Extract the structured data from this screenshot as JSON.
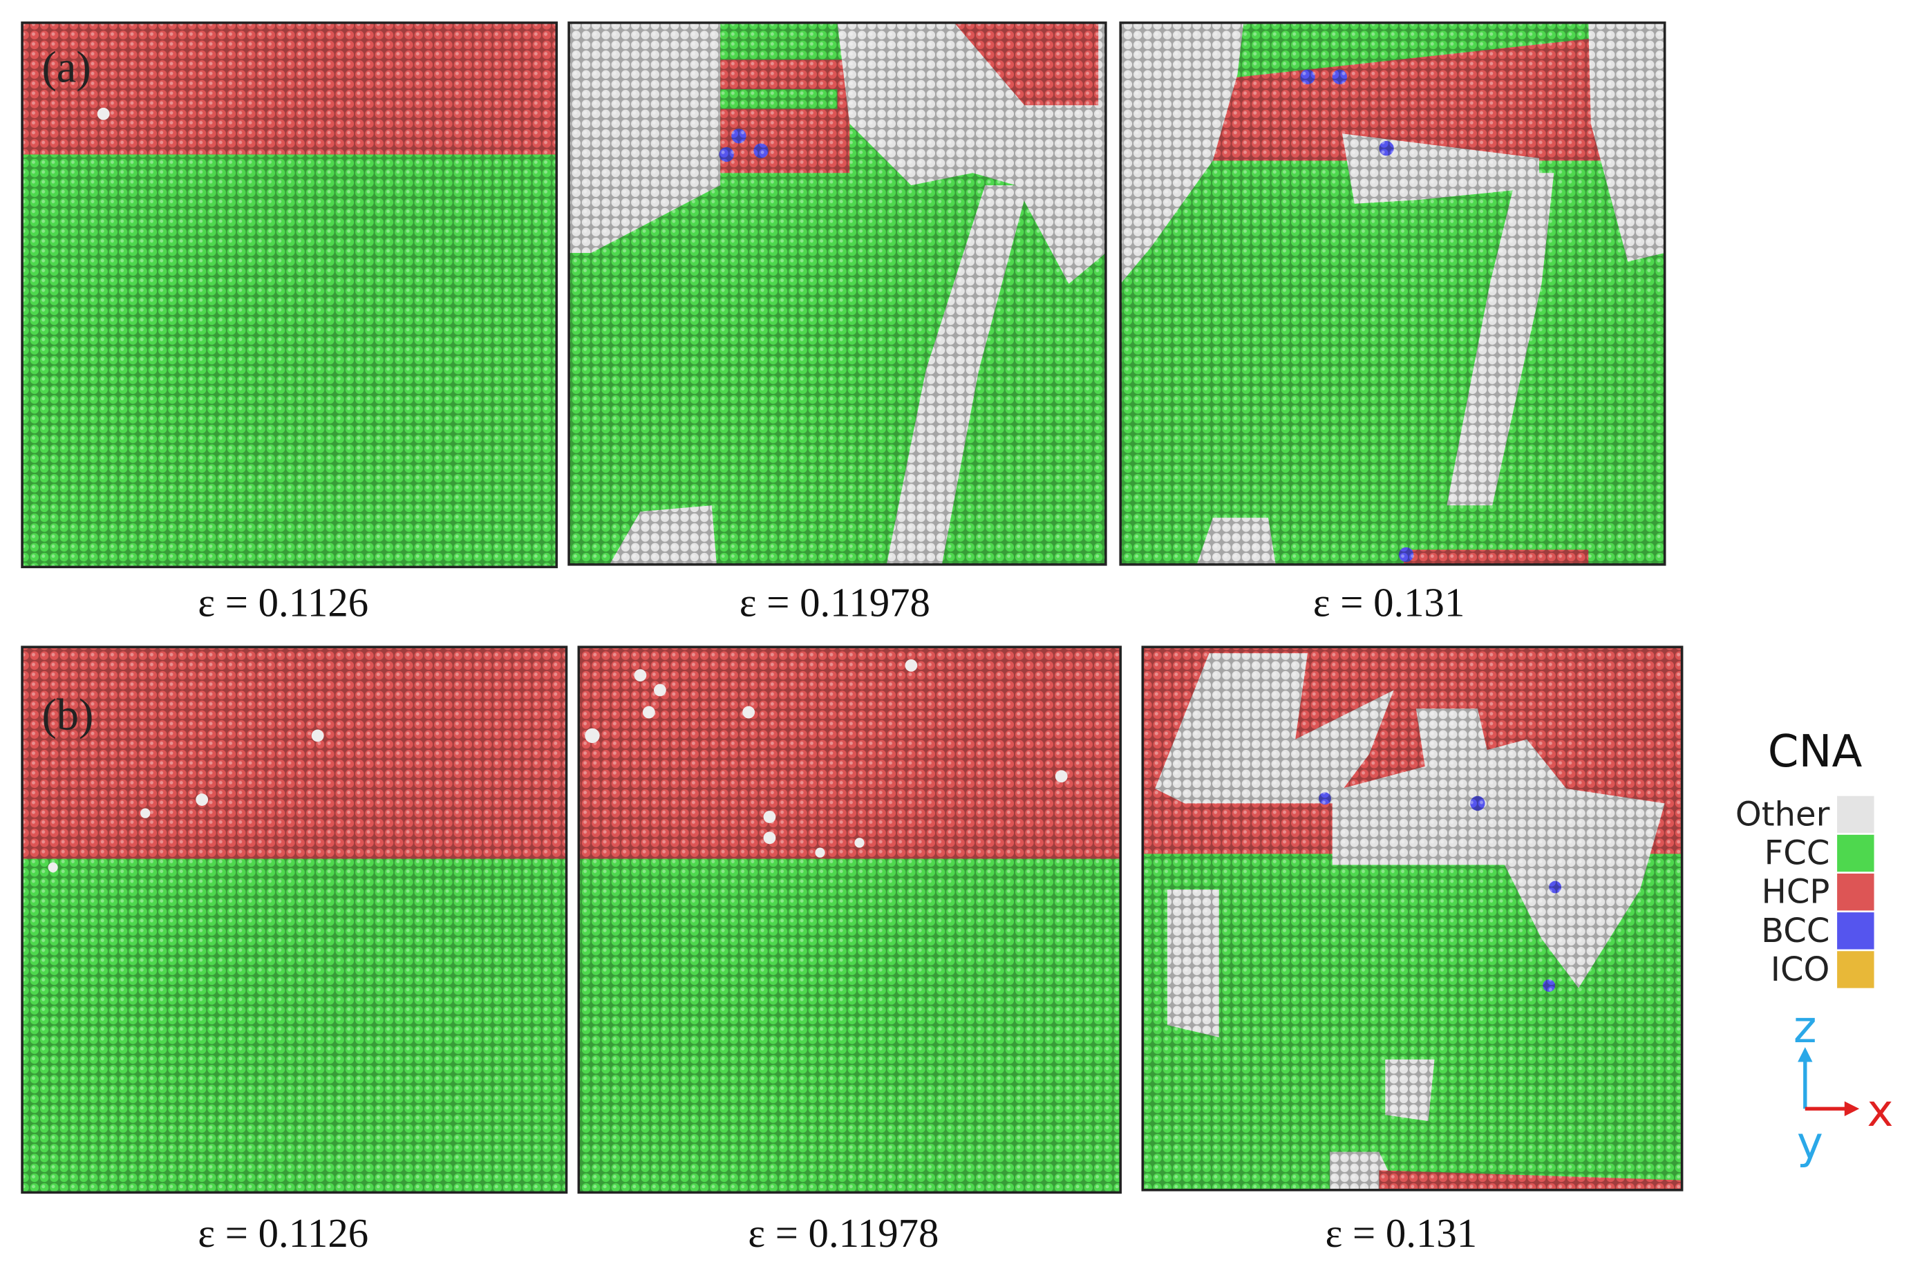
{
  "panels": [
    {
      "label": "(a)",
      "captions": [
        "ε = 0.1126",
        "ε = 0.11978",
        "ε = 0.131"
      ]
    },
    {
      "label": "(b)",
      "captions": [
        "ε = 0.1126",
        "ε = 0.11978",
        "ε = 0.131"
      ]
    }
  ],
  "legend": {
    "title": "CNA",
    "items": [
      {
        "label": "Other",
        "color": "#e4e4e4"
      },
      {
        "label": "FCC",
        "color": "#4ed84e"
      },
      {
        "label": "HCP",
        "color": "#dd5555"
      },
      {
        "label": "BCC",
        "color": "#5555ee"
      },
      {
        "label": "ICO",
        "color": "#e8b838"
      }
    ]
  },
  "axes": {
    "z": "z",
    "x": "x",
    "y": "y"
  }
}
